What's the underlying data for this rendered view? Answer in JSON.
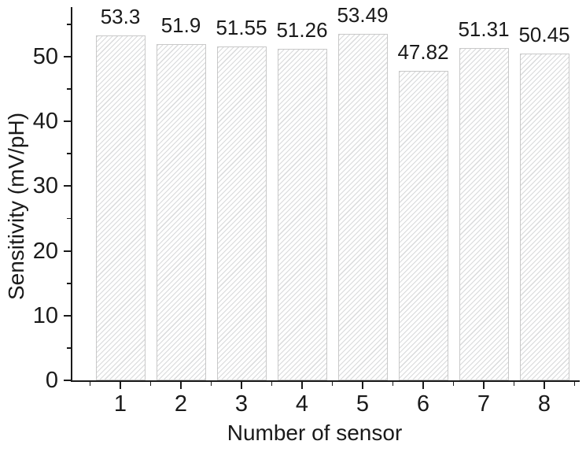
{
  "chart_data": {
    "type": "bar",
    "title": "",
    "xlabel": "Number of sensor",
    "ylabel": "Sensitivity (mV/pH)",
    "categories": [
      "1",
      "2",
      "3",
      "4",
      "5",
      "6",
      "7",
      "8"
    ],
    "values": [
      53.3,
      51.9,
      51.55,
      51.26,
      53.49,
      47.82,
      51.31,
      50.45
    ],
    "value_labels": [
      "53.3",
      "51.9",
      "51.55",
      "51.26",
      "53.49",
      "47.82",
      "51.31",
      "50.45"
    ],
    "ylim": [
      0,
      57.7
    ],
    "ytick_major_values": [
      0,
      10,
      20,
      30,
      40,
      50
    ],
    "ytick_labels": [
      "0",
      "10",
      "20",
      "30",
      "40",
      "50"
    ],
    "ytick_minor_values": [
      5,
      15,
      25,
      35,
      45,
      55
    ],
    "xtick_minor_between_categories": true,
    "grid": false,
    "legend": null,
    "style": {
      "bar_fill": "#fefefe",
      "bar_hatch": "diagonal-forward",
      "bar_hatch_color": "#d9dadb",
      "bar_border_color": "#c9c9c9",
      "axis_color": "#1a1a1a",
      "background": "#ffffff"
    }
  }
}
